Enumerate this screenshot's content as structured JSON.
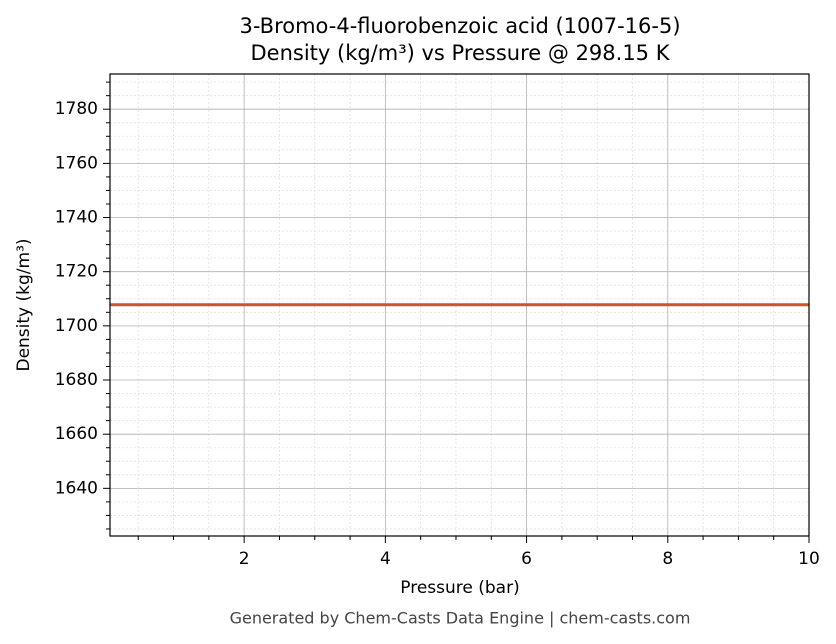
{
  "chart_data": {
    "type": "line",
    "title": "3-Bromo-4-fluorobenzoic acid (1007-16-5)",
    "subtitle": "Density (kg/m³) vs Pressure @ 298.15 K",
    "xlabel": "Pressure (bar)",
    "ylabel": "Density (kg/m³)",
    "footer": "Generated by Chem-Casts Data Engine | chem-casts.com",
    "x": [
      0.1,
      10
    ],
    "series": [
      {
        "color": "#c8562a",
        "values": [
          1707.8,
          1707.8
        ]
      }
    ],
    "xlim": [
      0.1,
      10
    ],
    "ylim": [
      1622.4,
      1793
    ],
    "xticks": [
      2,
      4,
      6,
      8,
      10
    ],
    "yticks": [
      1640,
      1660,
      1680,
      1700,
      1720,
      1740,
      1760,
      1780
    ],
    "xminorticks": [
      0.5,
      1,
      1.5,
      2.5,
      3,
      3.5,
      4.5,
      5,
      5.5,
      6.5,
      7,
      7.5,
      8.5,
      9,
      9.5
    ],
    "yminorticks": [
      1625,
      1630,
      1635,
      1645,
      1650,
      1655,
      1665,
      1670,
      1675,
      1685,
      1690,
      1695,
      1705,
      1710,
      1715,
      1725,
      1730,
      1735,
      1745,
      1750,
      1755,
      1765,
      1770,
      1775,
      1785,
      1790
    ],
    "grid": true
  }
}
